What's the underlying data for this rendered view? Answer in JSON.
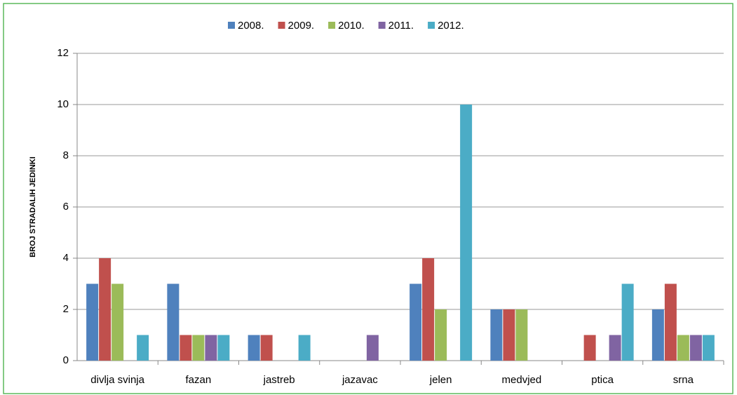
{
  "chart_data": {
    "type": "bar",
    "y_label": "BROJ STRADALIH JEDINKI",
    "categories": [
      "divlja svinja",
      "fazan",
      "jastreb",
      "jazavac",
      "jelen",
      "medvjed",
      "ptica",
      "srna"
    ],
    "series": [
      {
        "name": "2008.",
        "color": "#4f81bd",
        "values": [
          3,
          3,
          1,
          0,
          3,
          2,
          0,
          2
        ]
      },
      {
        "name": "2009.",
        "color": "#c0504d",
        "values": [
          4,
          1,
          1,
          0,
          4,
          2,
          1,
          3
        ]
      },
      {
        "name": "2010.",
        "color": "#9bbb59",
        "values": [
          3,
          1,
          0,
          0,
          2,
          2,
          0,
          1
        ]
      },
      {
        "name": "2011.",
        "color": "#8064a2",
        "values": [
          0,
          1,
          0,
          1,
          0,
          0,
          1,
          1
        ]
      },
      {
        "name": "2012.",
        "color": "#4bacc6",
        "values": [
          1,
          1,
          1,
          0,
          10,
          0,
          3,
          1
        ]
      }
    ],
    "ylim": [
      0,
      12
    ],
    "yticks": [
      0,
      2,
      4,
      6,
      8,
      10,
      12
    ],
    "grid": true,
    "legend": "top"
  }
}
